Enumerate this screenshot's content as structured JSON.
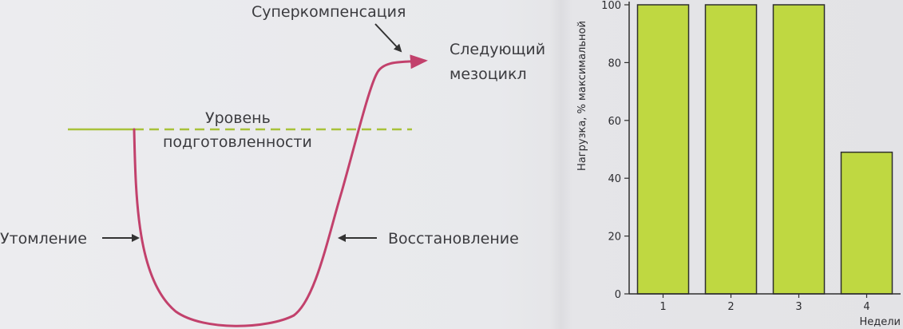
{
  "colors": {
    "curve": "#c2416c",
    "baseline": "#a8c23a",
    "arrow": "#333333",
    "bar_fill": "#bfd841",
    "bar_stroke": "#2e2e2e",
    "axis": "#2e2e2e"
  },
  "diagram": {
    "label_supercompensation": "Суперкомпенсация",
    "label_next_line1": "Следующий",
    "label_next_line2": "мезоцикл",
    "label_level_line1": "Уровень",
    "label_level_line2": "подготовленности",
    "label_fatigue": "Утомление",
    "label_recovery": "Восстановление"
  },
  "chart_data": {
    "type": "bar",
    "categories": [
      "1",
      "2",
      "3",
      "4"
    ],
    "values": [
      100,
      100,
      100,
      49
    ],
    "title": "",
    "xlabel": "Недели",
    "ylabel": "Нагрузка, % максимальной",
    "ylim": [
      0,
      100
    ],
    "yticks": [
      "0",
      "20",
      "40",
      "60",
      "80",
      "100"
    ],
    "grid": false
  }
}
